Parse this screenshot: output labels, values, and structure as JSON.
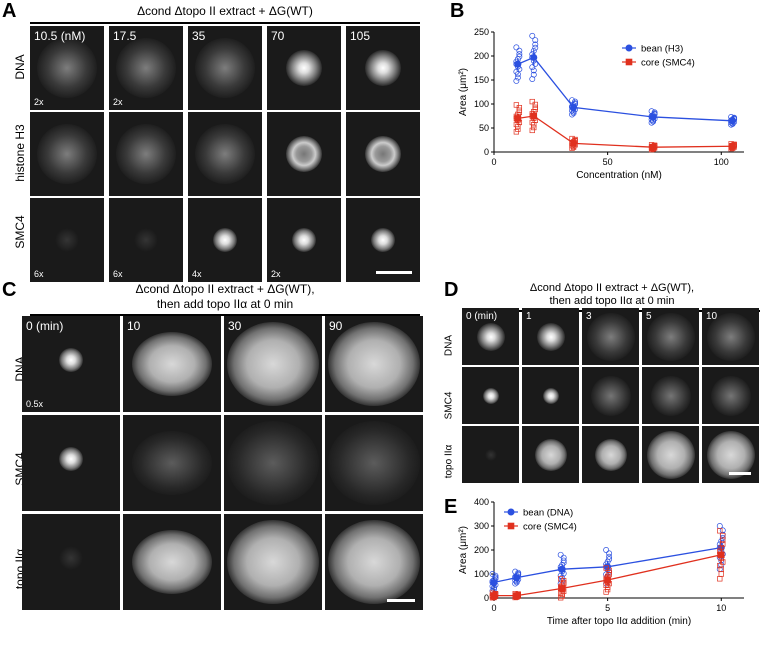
{
  "panels": {
    "A": {
      "letter": "A",
      "title": "Δcond Δtopo II extract + ΔG(WT)",
      "columns": [
        "10.5 (nM)",
        "17.5",
        "35",
        "70",
        "105"
      ],
      "rows": [
        "DNA",
        "histone H3",
        "SMC4"
      ],
      "mags": {
        "dna_0": "2x",
        "dna_1": "2x",
        "smc_0": "6x",
        "smc_1": "6x",
        "smc_2": "4x",
        "smc_3": "2x"
      }
    },
    "B": {
      "letter": "B"
    },
    "C": {
      "letter": "C",
      "title_line1": "Δcond Δtopo II extract + ΔG(WT),",
      "title_line2": "then add topo IIα at 0 min",
      "columns": [
        "0 (min)",
        "10",
        "30",
        "90"
      ],
      "rows": [
        "DNA",
        "SMC4",
        "topo IIα"
      ],
      "mags": {
        "dna_0": "0.5x"
      }
    },
    "D": {
      "letter": "D",
      "title_line1": "Δcond Δtopo II extract + ΔG(WT),",
      "title_line2": "then add topo IIα at 0 min",
      "columns": [
        "0 (min)",
        "1",
        "3",
        "5",
        "10"
      ],
      "rows": [
        "DNA",
        "SMC4",
        "topo IIα"
      ]
    },
    "E": {
      "letter": "E"
    }
  },
  "chart_data": [
    {
      "type": "scatter",
      "panel": "B",
      "xlabel": "Concentration (nM)",
      "ylabel": "Area (μm²)",
      "xlim": [
        0,
        110
      ],
      "ylim": [
        0,
        250
      ],
      "xticks": [
        0,
        50,
        100
      ],
      "yticks": [
        0,
        50,
        100,
        150,
        200,
        250
      ],
      "legend_position": "top-right",
      "series": [
        {
          "name": "bean (H3)",
          "color": "#2b50e0",
          "x": [
            10.5,
            17.5,
            35,
            70,
            105
          ],
          "mean": [
            183,
            197,
            93,
            73,
            65
          ]
        },
        {
          "name": "core (SMC4)",
          "color": "#e0301e",
          "x": [
            10.5,
            17.5,
            35,
            70,
            105
          ],
          "mean": [
            70,
            75,
            18,
            10,
            12
          ]
        }
      ]
    },
    {
      "type": "scatter",
      "panel": "E",
      "xlabel": "Time after topo IIα addition (min)",
      "ylabel": "Area (μm²)",
      "xlim": [
        0,
        11
      ],
      "ylim": [
        0,
        400
      ],
      "xticks": [
        0,
        5,
        10
      ],
      "yticks": [
        0,
        100,
        200,
        300,
        400
      ],
      "legend_position": "top-left",
      "series": [
        {
          "name": "bean (DNA)",
          "color": "#2b50e0",
          "x": [
            0,
            1,
            3,
            5,
            10
          ],
          "mean": [
            65,
            85,
            120,
            130,
            210
          ]
        },
        {
          "name": "core (SMC4)",
          "color": "#e0301e",
          "x": [
            0,
            1,
            3,
            5,
            10
          ],
          "mean": [
            10,
            10,
            40,
            75,
            180
          ]
        }
      ]
    }
  ]
}
